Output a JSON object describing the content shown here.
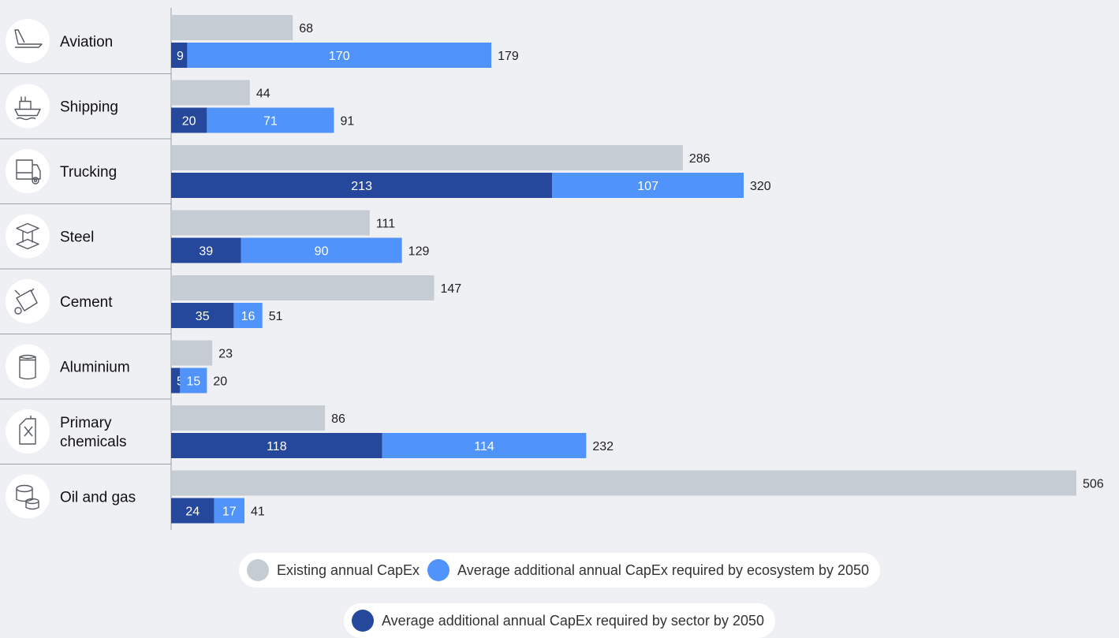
{
  "chart_data": {
    "type": "bar",
    "orientation": "horizontal",
    "categories": [
      "Aviation",
      "Shipping",
      "Trucking",
      "Steel",
      "Cement",
      "Aluminium",
      "Primary chemicals",
      "Oil and gas"
    ],
    "category_lines": [
      [
        "Aviation"
      ],
      [
        "Shipping"
      ],
      [
        "Trucking"
      ],
      [
        "Steel"
      ],
      [
        "Cement"
      ],
      [
        "Aluminium"
      ],
      [
        "Primary",
        "chemicals"
      ],
      [
        "Oil and gas"
      ]
    ],
    "icons": [
      "airplane-icon",
      "ship-icon",
      "truck-icon",
      "steel-beam-icon",
      "cement-mixer-icon",
      "can-icon",
      "chemical-canister-icon",
      "oil-barrels-icon"
    ],
    "series": [
      {
        "name": "Existing annual CapEx",
        "values": [
          68,
          44,
          286,
          111,
          147,
          23,
          86,
          506
        ],
        "color": "#c6ccd3"
      },
      {
        "name": "Average additional annual CapEx required by sector by 2050",
        "values": [
          9,
          20,
          213,
          39,
          35,
          5,
          118,
          24
        ],
        "color": "#26489c"
      },
      {
        "name": "Average additional annual CapEx required by ecosystem by 2050",
        "values": [
          170,
          71,
          107,
          90,
          16,
          15,
          114,
          17
        ],
        "color": "#4f93fb"
      }
    ],
    "totals": [
      179,
      91,
      320,
      129,
      51,
      20,
      232,
      41
    ],
    "stacked_series": [
      1,
      2
    ],
    "xlim": [
      0,
      506
    ],
    "legend_position": "bottom",
    "grid": false
  },
  "legend": {
    "existing": "Existing annual CapEx",
    "ecosystem": "Average additional annual CapEx required by ecosystem by 2050",
    "sector": "Average additional annual CapEx required by sector by 2050"
  },
  "colors": {
    "existing": "#c6ccd3",
    "sector": "#26489c",
    "ecosystem": "#4f93fb",
    "background": "#eff0f4"
  }
}
